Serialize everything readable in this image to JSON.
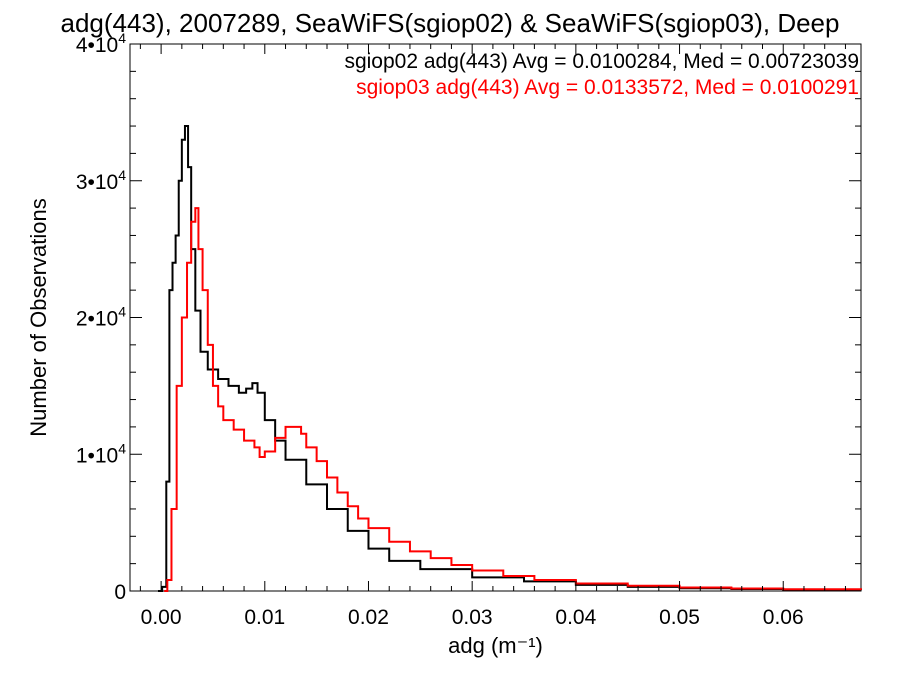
{
  "chart_data": {
    "type": "line",
    "title": "adg(443), 2007289, SeaWiFS(sgiop02) & SeaWiFS(sgiop03), Deep",
    "xlabel": "adg (m⁻¹)",
    "ylabel": "Number of Observations",
    "xlim": [
      -0.003,
      0.0675
    ],
    "ylim": [
      0,
      40000
    ],
    "x_ticks": [
      0.0,
      0.01,
      0.02,
      0.03,
      0.04,
      0.05,
      0.06
    ],
    "x_tick_labels": [
      "0.00",
      "0.01",
      "0.02",
      "0.03",
      "0.04",
      "0.05",
      "0.06"
    ],
    "y_ticks": [
      0,
      10000,
      20000,
      30000,
      40000
    ],
    "y_tick_labels": [
      {
        "base": "0",
        "exp": ""
      },
      {
        "base": "1•10",
        "exp": "4"
      },
      {
        "base": "2•10",
        "exp": "4"
      },
      {
        "base": "3•10",
        "exp": "4"
      },
      {
        "base": "4•10",
        "exp": "4"
      }
    ],
    "grid": false,
    "step": true,
    "series": [
      {
        "name": "sgiop02",
        "color": "#000000",
        "stats_label": "sgiop02 adg(443) Avg = 0.0100284, Med = 0.00723039",
        "x": [
          -0.0003,
          0.0001,
          0.0005,
          0.0008,
          0.0011,
          0.0014,
          0.0017,
          0.002,
          0.0023,
          0.0026,
          0.0029,
          0.0033,
          0.0038,
          0.0045,
          0.0055,
          0.0065,
          0.0075,
          0.0082,
          0.0088,
          0.0093,
          0.01,
          0.011,
          0.012,
          0.014,
          0.016,
          0.018,
          0.02,
          0.022,
          0.025,
          0.03,
          0.035,
          0.04,
          0.045,
          0.05,
          0.055,
          0.06,
          0.0675
        ],
        "y": [
          0,
          300,
          8000,
          22000,
          24000,
          26000,
          30000,
          33000,
          34000,
          31000,
          25000,
          20500,
          17500,
          16200,
          15500,
          15000,
          14500,
          14800,
          15200,
          14500,
          12500,
          11000,
          9600,
          7800,
          6000,
          4400,
          3100,
          2200,
          1600,
          1000,
          700,
          450,
          300,
          200,
          150,
          100,
          60
        ]
      },
      {
        "name": "sgiop03",
        "color": "#ff0000",
        "stats_label": "sgiop03 adg(443) Avg = 0.0133572, Med = 0.0100291",
        "x": [
          0.0003,
          0.0006,
          0.001,
          0.0015,
          0.002,
          0.0025,
          0.0029,
          0.0033,
          0.0036,
          0.004,
          0.0045,
          0.005,
          0.0055,
          0.006,
          0.007,
          0.008,
          0.009,
          0.0095,
          0.01,
          0.011,
          0.012,
          0.0128,
          0.0135,
          0.014,
          0.015,
          0.016,
          0.017,
          0.018,
          0.019,
          0.02,
          0.022,
          0.024,
          0.026,
          0.028,
          0.03,
          0.033,
          0.036,
          0.04,
          0.045,
          0.05,
          0.055,
          0.06,
          0.0675
        ],
        "y": [
          0,
          800,
          6000,
          15000,
          20000,
          24000,
          27000,
          28000,
          25000,
          22000,
          18000,
          15000,
          13500,
          12500,
          11800,
          11000,
          10500,
          9800,
          10200,
          11200,
          12000,
          12000,
          11500,
          10500,
          9500,
          8300,
          7200,
          6200,
          5300,
          4600,
          3600,
          2900,
          2400,
          1900,
          1500,
          1100,
          800,
          550,
          380,
          260,
          180,
          130,
          80
        ]
      }
    ]
  }
}
